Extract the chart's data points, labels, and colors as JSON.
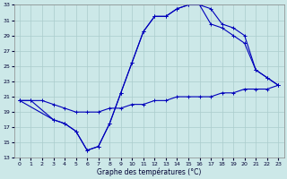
{
  "xlabel": "Graphe des températures (°C)",
  "background_color": "#cce8e8",
  "grid_color": "#aacccc",
  "line_color": "#0000bb",
  "xlim_min": -0.5,
  "xlim_max": 23.5,
  "ylim_min": 13,
  "ylim_max": 33,
  "xticks": [
    0,
    1,
    2,
    3,
    4,
    5,
    6,
    7,
    8,
    9,
    10,
    11,
    12,
    13,
    14,
    15,
    16,
    17,
    18,
    19,
    20,
    21,
    22,
    23
  ],
  "yticks": [
    13,
    15,
    17,
    19,
    21,
    23,
    25,
    27,
    29,
    31,
    33
  ],
  "line1_x": [
    0,
    1,
    2,
    3,
    4,
    5,
    6,
    7,
    8,
    9,
    10,
    11,
    12,
    13,
    14,
    15,
    16,
    17,
    18,
    19,
    20,
    21,
    22,
    23
  ],
  "line1_y": [
    20.5,
    20.5,
    20.5,
    20.0,
    19.5,
    19.0,
    19.0,
    19.0,
    19.5,
    19.5,
    20.0,
    20.0,
    20.5,
    20.5,
    21.0,
    21.0,
    21.0,
    21.0,
    21.5,
    21.5,
    22.0,
    22.0,
    22.0,
    22.5
  ],
  "line2_x": [
    0,
    1,
    3,
    4,
    5,
    6,
    7,
    8,
    9,
    10,
    11,
    12,
    13,
    14,
    15,
    16,
    17,
    18,
    19,
    20,
    21,
    22,
    23
  ],
  "line2_y": [
    20.5,
    20.5,
    18.0,
    17.5,
    16.5,
    14.0,
    14.5,
    17.5,
    21.5,
    25.5,
    29.5,
    31.5,
    31.5,
    32.5,
    33.0,
    33.0,
    32.5,
    30.5,
    30.0,
    29.0,
    24.5,
    23.5,
    22.5
  ],
  "line3_x": [
    0,
    3,
    4,
    5,
    6,
    7,
    8,
    9,
    10,
    11,
    12,
    13,
    14,
    15,
    16,
    17,
    18,
    19,
    20,
    21,
    22,
    23
  ],
  "line3_y": [
    20.5,
    18.0,
    17.5,
    16.5,
    14.0,
    14.5,
    17.5,
    21.5,
    25.5,
    29.5,
    31.5,
    31.5,
    32.5,
    33.0,
    33.0,
    30.5,
    30.0,
    29.0,
    28.0,
    24.5,
    23.5,
    22.5
  ],
  "lw": 0.8,
  "ms": 2.5,
  "tick_labelsize": 4.5,
  "xlabel_fontsize": 5.5
}
